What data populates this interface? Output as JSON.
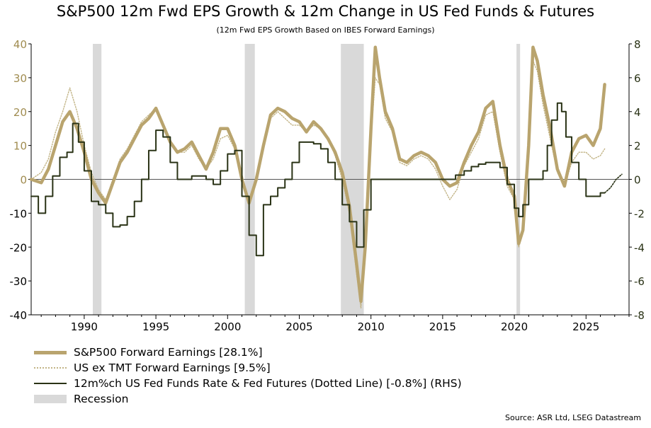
{
  "title": "S&P500 12m Fwd EPS Growth & 12m Change in US Fed Funds & Futures",
  "subtitle": "(12m Fwd EPS Growth Based on IBES Forward Earnings)",
  "source": "Source: ASR Ltd, LSEG Datastream",
  "colors": {
    "eps": "#b9a46e",
    "ex_tmt": "#c2b486",
    "fed": "#2a3316",
    "recession": "#d9d9d9",
    "left_axis_text": "#a08c50",
    "right_axis_text": "#2a3316"
  },
  "legend": {
    "eps": "S&P500 Forward Earnings [28.1%]",
    "ex_tmt": "US ex TMT Forward Earnings [9.5%]",
    "fed": "12m%ch US Fed Funds Rate & Fed Futures (Dotted Line) [-0.8%] (RHS)",
    "recession": "Recession"
  },
  "chart_data": {
    "type": "line",
    "title": "S&P500 12m Fwd EPS Growth & 12m Change in US Fed Funds & Futures",
    "subtitle": "(12m Fwd EPS Growth Based on IBES Forward Earnings)",
    "xlim": [
      1986.3,
      2028.0
    ],
    "x_ticks": [
      1990,
      1995,
      2000,
      2005,
      2010,
      2015,
      2020,
      2025
    ],
    "ylim_left": [
      -40,
      40
    ],
    "y_ticks_left": [
      -40,
      -30,
      -20,
      -10,
      0,
      10,
      20,
      30,
      40
    ],
    "ylim_right": [
      -8,
      8
    ],
    "y_ticks_right": [
      -8,
      -6,
      -4,
      -2,
      0,
      2,
      4,
      6,
      8
    ],
    "grid": false,
    "legend_position": "bottom-left",
    "recessions": [
      [
        1990.6,
        1991.2
      ],
      [
        2001.2,
        2001.9
      ],
      [
        2007.9,
        2009.5
      ],
      [
        2020.15,
        2020.4
      ]
    ],
    "series": [
      {
        "name": "S&P500 Forward Earnings [28.1%]",
        "axis": "left",
        "style": "thick",
        "x": [
          1986.3,
          1987.0,
          1987.5,
          1988.0,
          1988.5,
          1989.0,
          1989.5,
          1990.0,
          1990.5,
          1991.0,
          1991.5,
          1992.0,
          1992.5,
          1993.0,
          1993.5,
          1994.0,
          1994.5,
          1995.0,
          1995.5,
          1996.0,
          1996.5,
          1997.0,
          1997.5,
          1998.0,
          1998.5,
          1999.0,
          1999.5,
          2000.0,
          2000.5,
          2001.0,
          2001.5,
          2002.0,
          2002.5,
          2003.0,
          2003.5,
          2004.0,
          2004.5,
          2005.0,
          2005.5,
          2006.0,
          2006.5,
          2007.0,
          2007.5,
          2008.0,
          2008.5,
          2009.0,
          2009.3,
          2009.6,
          2010.0,
          2010.3,
          2010.6,
          2011.0,
          2011.5,
          2012.0,
          2012.5,
          2013.0,
          2013.5,
          2014.0,
          2014.5,
          2015.0,
          2015.5,
          2016.0,
          2016.5,
          2017.0,
          2017.5,
          2018.0,
          2018.5,
          2019.0,
          2019.5,
          2020.0,
          2020.3,
          2020.6,
          2021.0,
          2021.3,
          2021.6,
          2022.0,
          2022.5,
          2023.0,
          2023.5,
          2024.0,
          2024.5,
          2025.0,
          2025.5,
          2026.0,
          2026.3
        ],
        "values": [
          0,
          -1,
          3,
          10,
          17,
          20,
          15,
          8,
          0,
          -4,
          -7,
          -1,
          5,
          8,
          12,
          16,
          18,
          21,
          16,
          11,
          8,
          9,
          11,
          7,
          3,
          8,
          15,
          15,
          10,
          0,
          -7,
          0,
          10,
          19,
          21,
          20,
          18,
          17,
          14,
          17,
          15,
          12,
          8,
          2,
          -8,
          -25,
          -36,
          -20,
          15,
          39,
          30,
          20,
          15,
          6,
          5,
          7,
          8,
          7,
          5,
          0,
          -2,
          -1,
          5,
          10,
          14,
          21,
          23,
          10,
          0,
          -5,
          -19,
          -15,
          10,
          39,
          35,
          25,
          15,
          3,
          -2,
          8,
          12,
          13,
          10,
          15,
          28
        ]
      },
      {
        "name": "US ex TMT Forward Earnings [9.5%]",
        "axis": "left",
        "style": "dotted",
        "x": [
          1986.3,
          1987.0,
          1987.5,
          1988.0,
          1988.5,
          1989.0,
          1989.5,
          1990.0,
          1990.5,
          1991.0,
          1991.5,
          1992.0,
          1992.5,
          1993.0,
          1993.5,
          1994.0,
          1994.5,
          1995.0,
          1995.5,
          1996.0,
          1996.5,
          1997.0,
          1997.5,
          1998.0,
          1998.5,
          1999.0,
          1999.5,
          2000.0,
          2000.5,
          2001.0,
          2001.5,
          2002.0,
          2002.5,
          2003.0,
          2003.5,
          2004.0,
          2004.5,
          2005.0,
          2005.5,
          2006.0,
          2006.5,
          2007.0,
          2007.5,
          2008.0,
          2008.5,
          2009.0,
          2009.3,
          2009.6,
          2010.0,
          2010.3,
          2010.6,
          2011.0,
          2011.5,
          2012.0,
          2012.5,
          2013.0,
          2013.5,
          2014.0,
          2014.5,
          2015.0,
          2015.5,
          2016.0,
          2016.5,
          2017.0,
          2017.5,
          2018.0,
          2018.5,
          2019.0,
          2019.5,
          2020.0,
          2020.3,
          2020.6,
          2021.0,
          2021.3,
          2021.6,
          2022.0,
          2022.5,
          2023.0,
          2023.5,
          2024.0,
          2024.5,
          2025.0,
          2025.5,
          2026.0,
          2026.3
        ],
        "values": [
          0,
          2,
          6,
          14,
          20,
          27,
          20,
          10,
          2,
          -3,
          -6,
          0,
          6,
          9,
          13,
          17,
          19,
          21,
          16,
          11,
          8,
          8,
          10,
          6,
          3,
          6,
          12,
          13,
          9,
          0,
          -6,
          0,
          10,
          18,
          20,
          18,
          16,
          16,
          14,
          16,
          15,
          12,
          7,
          0,
          -10,
          -28,
          -38,
          -22,
          12,
          30,
          28,
          18,
          14,
          5,
          4,
          6,
          7,
          6,
          3,
          -2,
          -6,
          -3,
          4,
          8,
          12,
          19,
          20,
          8,
          -2,
          -6,
          -20,
          -14,
          10,
          35,
          32,
          22,
          12,
          2,
          -2,
          5,
          8,
          8,
          6,
          7,
          9
        ]
      },
      {
        "name": "12m%ch US Fed Funds Rate & Fed Futures (Dotted Line) [-0.8%] (RHS)",
        "axis": "right",
        "style": "step",
        "x": [
          1986.3,
          1986.8,
          1987.3,
          1987.8,
          1988.3,
          1988.8,
          1989.2,
          1989.6,
          1990.0,
          1990.5,
          1991.0,
          1991.5,
          1992.0,
          1992.5,
          1993.0,
          1993.5,
          1994.0,
          1994.5,
          1995.0,
          1995.5,
          1996.0,
          1996.5,
          1997.0,
          1997.5,
          1998.0,
          1998.5,
          1999.0,
          1999.5,
          2000.0,
          2000.5,
          2001.0,
          2001.5,
          2002.0,
          2002.5,
          2003.0,
          2003.5,
          2004.0,
          2004.5,
          2005.0,
          2005.5,
          2006.0,
          2006.5,
          2007.0,
          2007.5,
          2008.0,
          2008.5,
          2009.0,
          2009.5,
          2010.0,
          2015.0,
          2015.9,
          2016.5,
          2017.0,
          2017.5,
          2018.0,
          2018.5,
          2019.0,
          2019.5,
          2020.0,
          2020.3,
          2020.6,
          2021.0,
          2021.5,
          2022.0,
          2022.3,
          2022.6,
          2023.0,
          2023.3,
          2023.6,
          2024.0,
          2024.5,
          2025.0,
          2025.5,
          2026.0,
          2026.3
        ],
        "values": [
          -1.0,
          -2.0,
          -1.0,
          0.2,
          1.3,
          1.6,
          3.3,
          2.2,
          0.5,
          -1.3,
          -1.5,
          -2.0,
          -2.8,
          -2.7,
          -2.2,
          -1.3,
          0.0,
          1.7,
          2.9,
          2.5,
          1.0,
          0.0,
          0.0,
          0.2,
          0.2,
          0.0,
          -0.3,
          0.5,
          1.5,
          1.7,
          -1.0,
          -3.3,
          -4.5,
          -1.5,
          -1.0,
          -0.5,
          0.0,
          1.0,
          2.2,
          2.2,
          2.1,
          1.8,
          1.0,
          0.0,
          -1.5,
          -2.5,
          -4.0,
          -1.8,
          0.0,
          0.0,
          0.25,
          0.5,
          0.75,
          0.9,
          1.0,
          1.0,
          0.7,
          -0.3,
          -1.7,
          -2.2,
          -1.5,
          0.0,
          0.0,
          0.5,
          2.0,
          3.5,
          4.5,
          4.0,
          2.5,
          1.0,
          0.0,
          -1.0,
          -1.0,
          -0.8,
          -0.8
        ]
      },
      {
        "name": "Fed Futures",
        "axis": "right",
        "style": "dotted-dark",
        "x": [
          2026.3,
          2026.7,
          2027.1,
          2027.5
        ],
        "values": [
          -0.8,
          -0.5,
          0.0,
          0.3
        ]
      }
    ]
  }
}
